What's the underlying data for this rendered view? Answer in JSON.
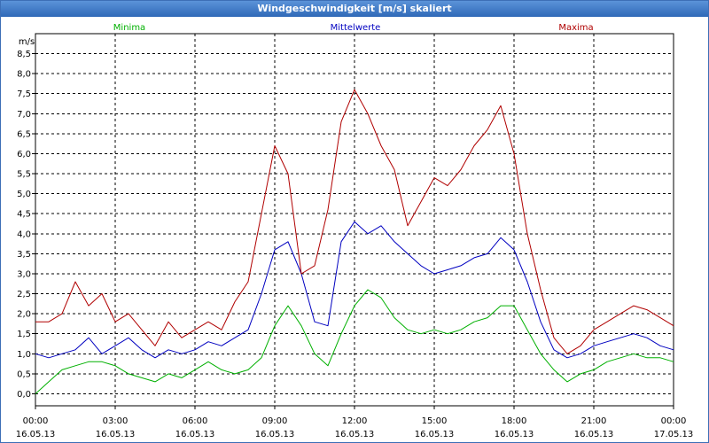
{
  "window": {
    "title": "Windgeschwindigkeit [m/s] skaliert"
  },
  "chart_data": {
    "type": "line",
    "title": "Windgeschwindigkeit [m/s] skaliert",
    "ylabel": "m/s",
    "xlabel": "",
    "ylim": [
      -0.3,
      9.0
    ],
    "xlim": [
      0,
      24
    ],
    "grid": true,
    "y_ticks": [
      {
        "value": 0.0,
        "label": "0,0"
      },
      {
        "value": 0.5,
        "label": "0,5"
      },
      {
        "value": 1.0,
        "label": "1,0"
      },
      {
        "value": 1.5,
        "label": "1,5"
      },
      {
        "value": 2.0,
        "label": "2,0"
      },
      {
        "value": 2.5,
        "label": "2,5"
      },
      {
        "value": 3.0,
        "label": "3,0"
      },
      {
        "value": 3.5,
        "label": "3,5"
      },
      {
        "value": 4.0,
        "label": "4,0"
      },
      {
        "value": 4.5,
        "label": "4,5"
      },
      {
        "value": 5.0,
        "label": "5,0"
      },
      {
        "value": 5.5,
        "label": "5,5"
      },
      {
        "value": 6.0,
        "label": "6,0"
      },
      {
        "value": 6.5,
        "label": "6,5"
      },
      {
        "value": 7.0,
        "label": "7,0"
      },
      {
        "value": 7.5,
        "label": "7,5"
      },
      {
        "value": 8.0,
        "label": "8,0"
      },
      {
        "value": 8.5,
        "label": "8,5"
      }
    ],
    "x_ticks": [
      {
        "value": 0,
        "time": "00:00",
        "date": "16.05.13"
      },
      {
        "value": 3,
        "time": "03:00",
        "date": "16.05.13"
      },
      {
        "value": 6,
        "time": "06:00",
        "date": "16.05.13"
      },
      {
        "value": 9,
        "time": "09:00",
        "date": "16.05.13"
      },
      {
        "value": 12,
        "time": "12:00",
        "date": "16.05.13"
      },
      {
        "value": 15,
        "time": "15:00",
        "date": "16.05.13"
      },
      {
        "value": 18,
        "time": "18:00",
        "date": "16.05.13"
      },
      {
        "value": 21,
        "time": "21:00",
        "date": "16.05.13"
      },
      {
        "value": 24,
        "time": "00:00",
        "date": "17.05.13"
      }
    ],
    "legend_placement": "top",
    "series": [
      {
        "name": "Minima",
        "color": "#00b000",
        "x": [
          0,
          0.5,
          1,
          1.5,
          2,
          2.5,
          3,
          3.5,
          4,
          4.5,
          5,
          5.5,
          6,
          6.5,
          7,
          7.5,
          8,
          8.5,
          9,
          9.5,
          10,
          10.5,
          11,
          11.5,
          12,
          12.5,
          13,
          13.5,
          14,
          14.5,
          15,
          15.5,
          16,
          16.5,
          17,
          17.5,
          18,
          18.5,
          19,
          19.5,
          20,
          20.5,
          21,
          21.5,
          22,
          22.5,
          23,
          23.5,
          24
        ],
        "values": [
          0,
          0.3,
          0.6,
          0.7,
          0.8,
          0.8,
          0.7,
          0.5,
          0.4,
          0.3,
          0.5,
          0.4,
          0.6,
          0.8,
          0.6,
          0.5,
          0.6,
          0.9,
          1.7,
          2.2,
          1.7,
          1.0,
          0.7,
          1.5,
          2.2,
          2.6,
          2.4,
          1.9,
          1.6,
          1.5,
          1.6,
          1.5,
          1.6,
          1.8,
          1.9,
          2.2,
          2.2,
          1.6,
          1.0,
          0.6,
          0.3,
          0.5,
          0.6,
          0.8,
          0.9,
          1.0,
          0.9,
          0.9,
          0.8
        ]
      },
      {
        "name": "Mittelwerte",
        "color": "#0000c0",
        "x": [
          0,
          0.5,
          1,
          1.5,
          2,
          2.5,
          3,
          3.5,
          4,
          4.5,
          5,
          5.5,
          6,
          6.5,
          7,
          7.5,
          8,
          8.5,
          9,
          9.5,
          10,
          10.5,
          11,
          11.5,
          12,
          12.5,
          13,
          13.5,
          14,
          14.5,
          15,
          15.5,
          16,
          16.5,
          17,
          17.5,
          18,
          18.5,
          19,
          19.5,
          20,
          20.5,
          21,
          21.5,
          22,
          22.5,
          23,
          23.5,
          24
        ],
        "values": [
          1.0,
          0.9,
          1.0,
          1.1,
          1.4,
          1.0,
          1.2,
          1.4,
          1.1,
          0.9,
          1.1,
          1.0,
          1.1,
          1.3,
          1.2,
          1.4,
          1.6,
          2.5,
          3.6,
          3.8,
          3.0,
          1.8,
          1.7,
          3.8,
          4.3,
          4.0,
          4.2,
          3.8,
          3.5,
          3.2,
          3.0,
          3.1,
          3.2,
          3.4,
          3.5,
          3.9,
          3.6,
          2.8,
          1.8,
          1.1,
          0.9,
          1.0,
          1.2,
          1.3,
          1.4,
          1.5,
          1.4,
          1.2,
          1.1
        ]
      },
      {
        "name": "Maxima",
        "color": "#b00000",
        "x": [
          0,
          0.5,
          1,
          1.5,
          2,
          2.5,
          3,
          3.5,
          4,
          4.5,
          5,
          5.5,
          6,
          6.5,
          7,
          7.5,
          8,
          8.5,
          9,
          9.5,
          10,
          10.5,
          11,
          11.5,
          12,
          12.5,
          13,
          13.5,
          14,
          14.5,
          15,
          15.5,
          16,
          16.5,
          17,
          17.5,
          18,
          18.5,
          19,
          19.5,
          20,
          20.5,
          21,
          21.5,
          22,
          22.5,
          23,
          23.5,
          24
        ],
        "values": [
          1.8,
          1.8,
          2.0,
          2.8,
          2.2,
          2.5,
          1.8,
          2.0,
          1.6,
          1.2,
          1.8,
          1.4,
          1.6,
          1.8,
          1.6,
          2.3,
          2.8,
          4.5,
          6.2,
          5.5,
          3.0,
          3.2,
          4.6,
          6.8,
          7.6,
          7.0,
          6.2,
          5.6,
          4.2,
          4.8,
          5.4,
          5.2,
          5.6,
          6.2,
          6.6,
          7.2,
          6.0,
          4.0,
          2.6,
          1.4,
          1.0,
          1.2,
          1.6,
          1.8,
          2.0,
          2.2,
          2.1,
          1.9,
          1.7
        ]
      }
    ]
  }
}
